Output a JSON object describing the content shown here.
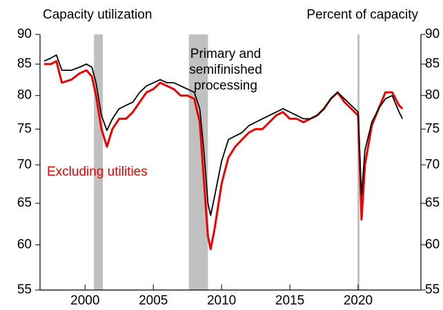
{
  "chart_data": {
    "type": "line",
    "title": "Capacity utilization",
    "y_axis_label": "Percent of capacity",
    "yscale": "log",
    "xlim": [
      1996.7,
      2024.6
    ],
    "xticks": [
      2000,
      2005,
      2010,
      2015,
      2020
    ],
    "ylim": [
      55,
      90
    ],
    "yticks": [
      55,
      60,
      65,
      70,
      75,
      80,
      85,
      90
    ],
    "y2lim": [
      55,
      90
    ],
    "y2ticks": [
      55,
      60,
      65,
      70,
      75,
      80,
      85,
      90
    ],
    "recession_color": "#c0c0c0",
    "recessions": [
      [
        2000.65,
        2001.3
      ],
      [
        2007.6,
        2009.0
      ],
      [
        2019.95,
        2020.1
      ]
    ],
    "x": [
      1997,
      1997.5,
      1997.9,
      1998.3,
      1999,
      1999.6,
      2000.1,
      2000.5,
      2000.8,
      2001.2,
      2001.6,
      2002,
      2002.5,
      2003,
      2003.5,
      2004,
      2004.5,
      2005,
      2005.5,
      2006,
      2006.5,
      2007,
      2007.5,
      2008,
      2008.4,
      2008.7,
      2009,
      2009.2,
      2009.5,
      2010,
      2010.5,
      2011,
      2011.5,
      2012,
      2012.5,
      2013,
      2013.5,
      2014,
      2014.5,
      2015,
      2015.5,
      2016,
      2016.5,
      2017,
      2017.5,
      2018,
      2018.5,
      2019,
      2019.5,
      2020,
      2020.25,
      2020.5,
      2021,
      2021.5,
      2022,
      2022.5,
      2023,
      2023.25
    ],
    "series": [
      {
        "name": "Primary and semifinished processing",
        "color": "#000000",
        "values": [
          85.5,
          86,
          86.5,
          84,
          84,
          84.5,
          85,
          84.5,
          82,
          77,
          74.8,
          76.5,
          78,
          78.5,
          79,
          80.5,
          81.5,
          82,
          82.5,
          82,
          82,
          81.5,
          81,
          80.5,
          78,
          72,
          65,
          63.5,
          66,
          70.5,
          73.5,
          74,
          74.5,
          75.5,
          76,
          76.5,
          77,
          77.5,
          78,
          77.5,
          77,
          76.5,
          76.5,
          77,
          78,
          79.5,
          80.5,
          79.5,
          78.5,
          77.5,
          66,
          72,
          76,
          78,
          79.5,
          80,
          77.5,
          76.5
        ]
      },
      {
        "name": "Excluding utilities",
        "color": "#ee0000",
        "values": [
          85,
          85,
          85.5,
          82,
          82.5,
          83.5,
          84,
          83,
          80,
          75,
          72.5,
          75,
          76.5,
          76.5,
          77.5,
          79,
          80.5,
          81,
          82,
          81.5,
          81,
          80,
          80,
          79.5,
          76,
          68,
          61,
          59.5,
          62,
          67.5,
          71,
          72.5,
          73.5,
          74.5,
          75,
          75,
          76,
          77,
          77.5,
          76.5,
          76.5,
          76,
          76.5,
          77,
          78,
          79.5,
          80.5,
          79,
          78,
          77,
          63,
          70,
          75.5,
          78,
          80.5,
          80.5,
          78.5,
          78
        ]
      }
    ]
  }
}
